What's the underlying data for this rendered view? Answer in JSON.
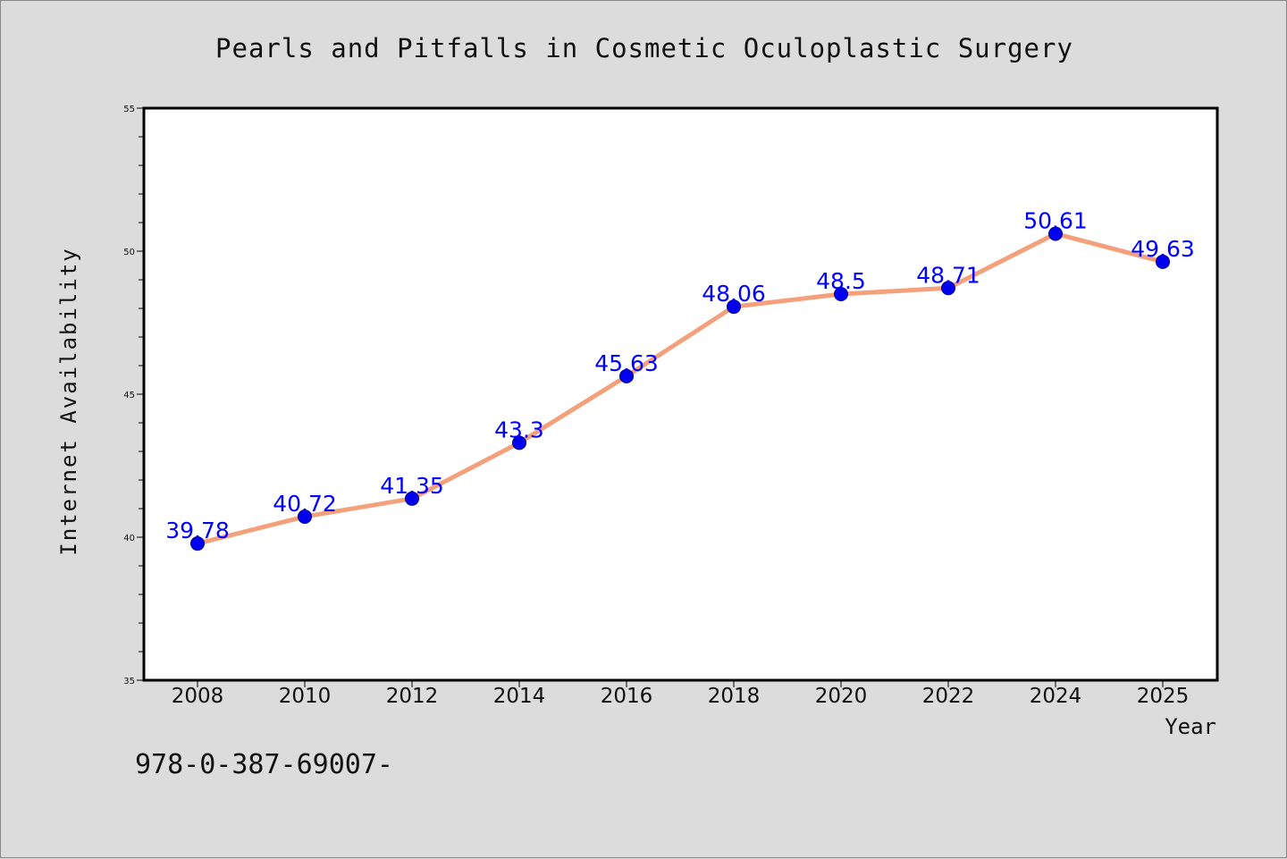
{
  "chart_data": {
    "type": "line",
    "title": "Pearls and Pitfalls in Cosmetic Oculoplastic Surgery",
    "xlabel": "Year",
    "ylabel": "Internet Availability",
    "x": [
      "2008",
      "2010",
      "2012",
      "2014",
      "2016",
      "2018",
      "2020",
      "2022",
      "2024",
      "2025"
    ],
    "values": [
      39.78,
      40.72,
      41.35,
      43.3,
      45.63,
      48.06,
      48.5,
      48.71,
      50.61,
      49.63
    ],
    "data_labels": [
      "39.78",
      "40.72",
      "41.35",
      "43.3",
      "45.63",
      "48.06",
      "48.5",
      "48.71",
      "50.61",
      "49.63"
    ],
    "ylim": [
      35,
      55
    ],
    "yticks": [
      35,
      40,
      45,
      50,
      55
    ],
    "ytick_labels": [
      "35",
      "40",
      "45",
      "50",
      "55"
    ],
    "grid": false,
    "line_color": "#f4a07a",
    "marker_color": "#0000ee",
    "label_color": "#0000ff"
  },
  "footer": "978-0-387-69007-"
}
